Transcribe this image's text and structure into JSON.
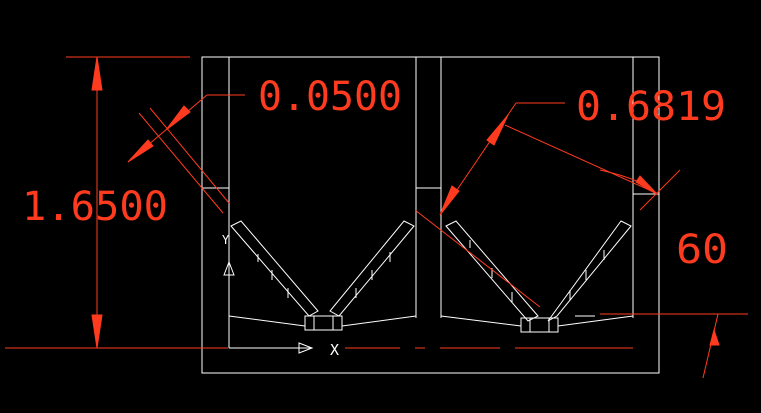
{
  "colors": {
    "background": "#000000",
    "geometry": "#ffffff",
    "dimension": "#ff3b1f"
  },
  "dimensions": {
    "height_label": "1.6500",
    "wall_thickness_label": "0.0500",
    "diagonal_label": "0.6819",
    "angle_label": "60"
  },
  "ucs": {
    "x_axis_label": "X",
    "y_axis_label": "Y"
  }
}
